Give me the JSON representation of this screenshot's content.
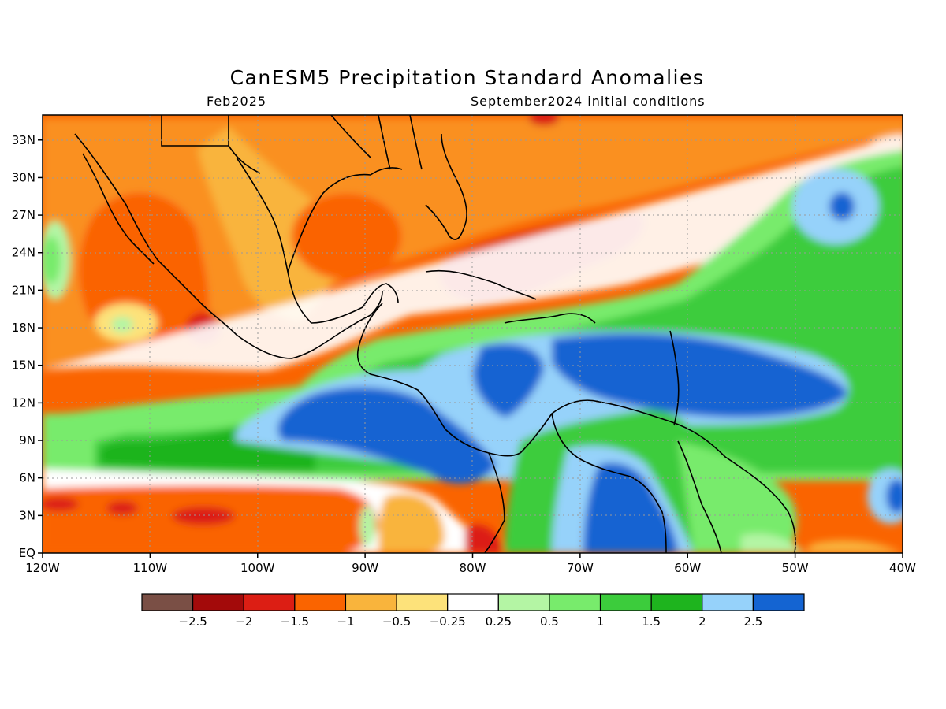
{
  "title": "CanESM5 Precipitation Standard Anomalies",
  "subtitle_left": "Feb2025",
  "subtitle_right": "September2024 initial conditions",
  "chart_data": {
    "type": "heatmap",
    "variable": "precipitation standard anomaly",
    "lon_range": [
      -120,
      -40
    ],
    "lat_range": [
      0,
      35
    ],
    "x_ticks": [
      "120W",
      "110W",
      "100W",
      "90W",
      "80W",
      "70W",
      "60W",
      "50W",
      "40W"
    ],
    "y_ticks": [
      "EQ",
      "3N",
      "6N",
      "9N",
      "12N",
      "15N",
      "18N",
      "21N",
      "24N",
      "27N",
      "30N",
      "33N"
    ],
    "grid": true,
    "colorbar": {
      "colors": [
        "#7a4f45",
        "#a30a0a",
        "#dc1e14",
        "#fa6400",
        "#f9b43c",
        "#fde27a",
        "#ffffff",
        "#b4f5a4",
        "#78eb6c",
        "#3ccc3c",
        "#1eb41e",
        "#96d2fa",
        "#1464d2"
      ],
      "labels": [
        "-2.5",
        "-2",
        "-1.5",
        "-1",
        "-0.5",
        "-0.25",
        "0.25",
        "0.5",
        "1",
        "1.5",
        "2",
        "2.5"
      ]
    }
  }
}
